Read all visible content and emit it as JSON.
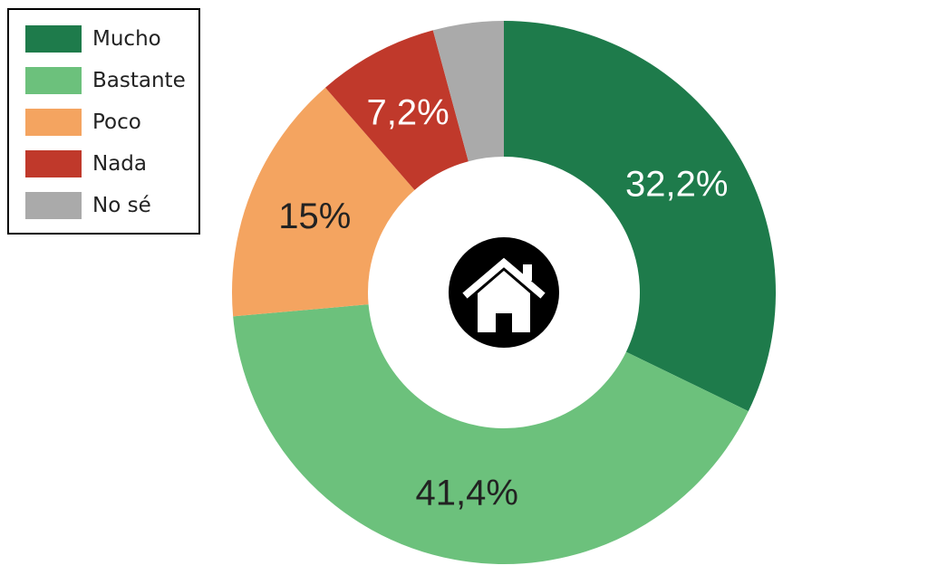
{
  "chart_data": {
    "type": "pie",
    "donut": true,
    "categories": [
      "Mucho",
      "Bastante",
      "Poco",
      "Nada",
      "No sé"
    ],
    "values": [
      32.2,
      41.4,
      15.0,
      7.2,
      4.2
    ],
    "value_labels": [
      "32,2%",
      "41,4%",
      "15%",
      "7,2%",
      ""
    ],
    "colors": [
      "#1e7b4b",
      "#6cc17c",
      "#f4a460",
      "#c0392b",
      "#aaaaaa"
    ],
    "label_colors": [
      "#ffffff",
      "#222222",
      "#222222",
      "#ffffff",
      "#ffffff"
    ],
    "legend_position": "top-left",
    "center_icon": "house-icon"
  },
  "legend": {
    "items": [
      {
        "label": "Mucho",
        "color": "#1e7b4b"
      },
      {
        "label": "Bastante",
        "color": "#6cc17c"
      },
      {
        "label": "Poco",
        "color": "#f4a460"
      },
      {
        "label": "Nada",
        "color": "#c0392b"
      },
      {
        "label": "No sé",
        "color": "#aaaaaa"
      }
    ]
  }
}
